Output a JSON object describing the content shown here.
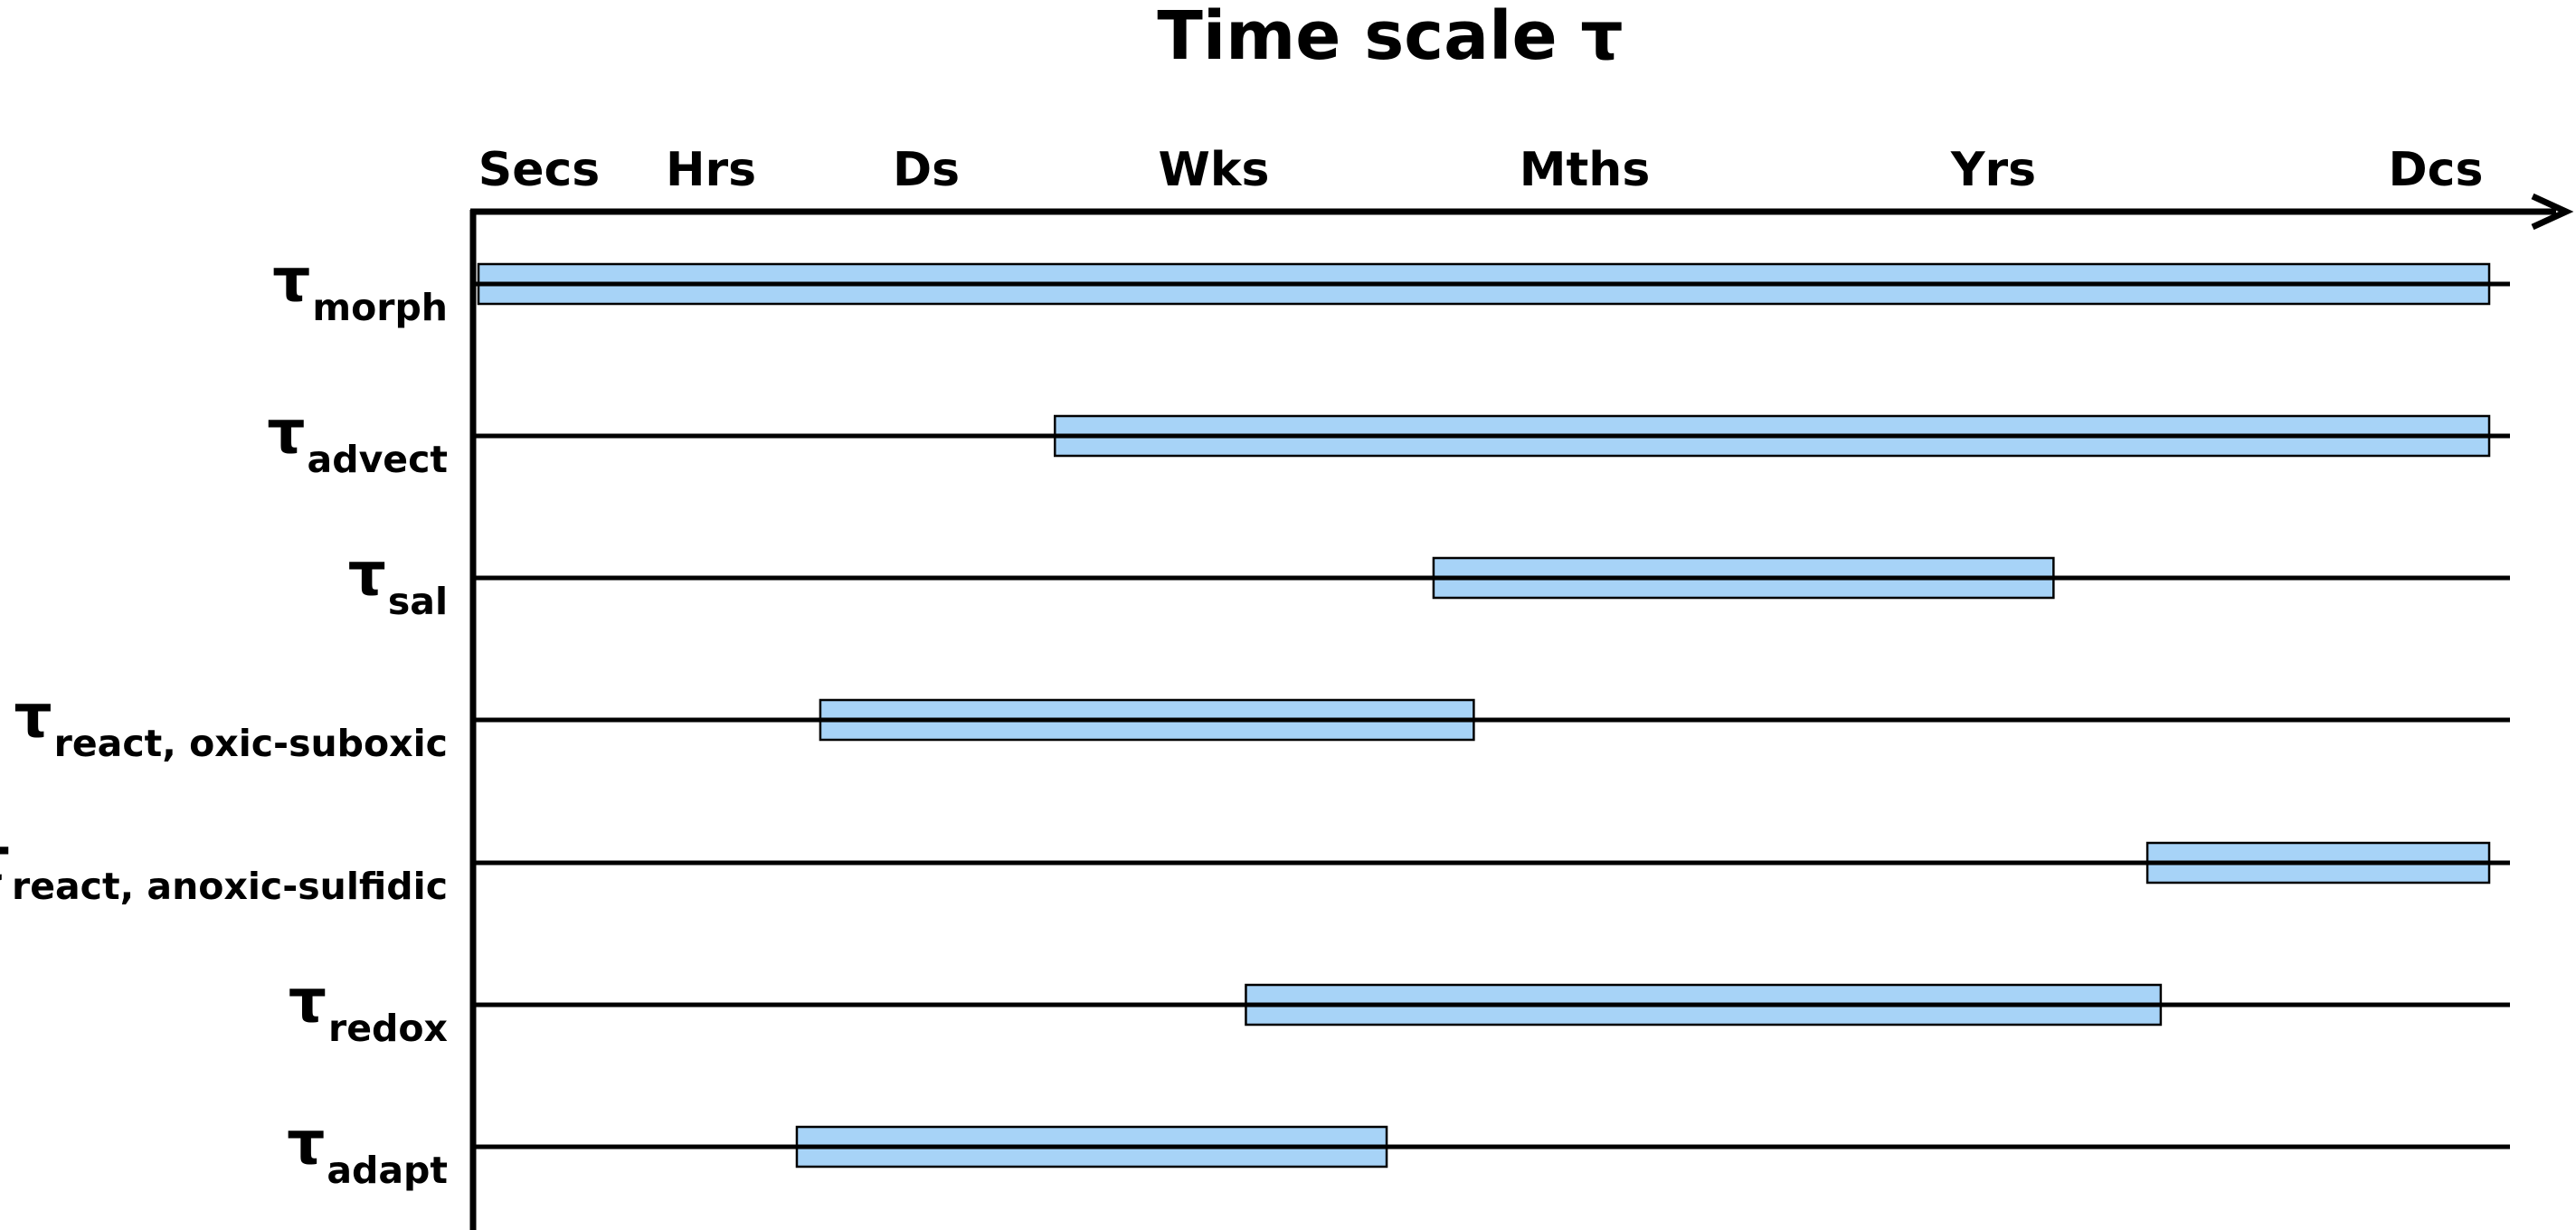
{
  "chart_data": {
    "type": "bar",
    "title": "Time scale τ",
    "x_ticks": [
      "Secs",
      "Hrs",
      "Ds",
      "Wks",
      "Mths",
      "Yrs",
      "Dcs"
    ],
    "x_range": [
      0,
      6
    ],
    "symbol": "τ",
    "bar_color": "#a7d3f7",
    "rows": [
      {
        "subscript": "morph",
        "start": 0.0,
        "end": 6.0
      },
      {
        "subscript": "advect",
        "start": 1.72,
        "end": 6.0
      },
      {
        "subscript": "sal",
        "start": 2.85,
        "end": 4.7
      },
      {
        "subscript": "react, oxic-suboxic",
        "start": 1.02,
        "end": 2.97
      },
      {
        "subscript": "react, anoxic-sulfidic",
        "start": 4.98,
        "end": 6.0
      },
      {
        "subscript": "redox",
        "start": 2.29,
        "end": 5.02
      },
      {
        "subscript": "adapt",
        "start": 0.95,
        "end": 2.71
      }
    ]
  }
}
